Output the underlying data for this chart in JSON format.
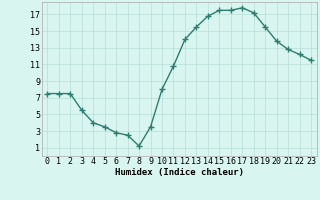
{
  "x": [
    0,
    1,
    2,
    3,
    4,
    5,
    6,
    7,
    8,
    9,
    10,
    11,
    12,
    13,
    14,
    15,
    16,
    17,
    18,
    19,
    20,
    21,
    22,
    23
  ],
  "y": [
    7.5,
    7.5,
    7.5,
    5.5,
    4.0,
    3.5,
    2.8,
    2.5,
    1.2,
    3.5,
    8.0,
    10.8,
    14.0,
    15.5,
    16.8,
    17.5,
    17.5,
    17.8,
    17.2,
    15.5,
    13.8,
    12.8,
    12.2,
    11.5
  ],
  "line_color": "#2e7d6e",
  "marker": "+",
  "marker_size": 4,
  "bg_color": "#d8f5f0",
  "grid_color": "#b8ddd8",
  "xlabel": "Humidex (Indice chaleur)",
  "ylim": [
    0,
    18.5
  ],
  "xlim": [
    -0.5,
    23.5
  ],
  "yticks": [
    1,
    3,
    5,
    7,
    9,
    11,
    13,
    15,
    17
  ],
  "xticks": [
    0,
    1,
    2,
    3,
    4,
    5,
    6,
    7,
    8,
    9,
    10,
    11,
    12,
    13,
    14,
    15,
    16,
    17,
    18,
    19,
    20,
    21,
    22,
    23
  ],
  "xlabel_fontsize": 6.5,
  "tick_fontsize": 6,
  "line_width": 1.0
}
